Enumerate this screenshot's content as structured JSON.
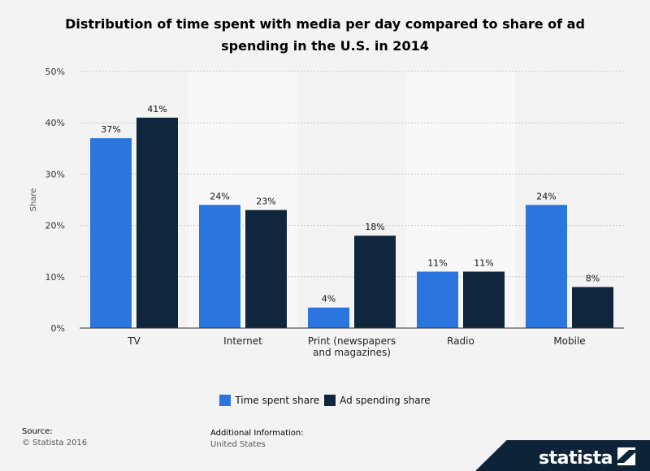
{
  "chart_data": {
    "type": "bar",
    "title": "Distribution of time spent with media per day compared to share of ad spending in the U.S. in 2014",
    "ylabel": "Share",
    "ylim": [
      0,
      50
    ],
    "yticks": [
      "0%",
      "10%",
      "20%",
      "30%",
      "40%",
      "50%"
    ],
    "ytick_values": [
      0,
      10,
      20,
      30,
      40,
      50
    ],
    "categories": [
      "TV",
      "Internet",
      "Print (newspapers|and magazines)",
      "Radio",
      "Mobile"
    ],
    "series": [
      {
        "name": "Time spent share",
        "values": [
          37,
          24,
          4,
          11,
          24
        ],
        "labels": [
          "37%",
          "24%",
          "4%",
          "11%",
          "24%"
        ],
        "color": "#2a75de"
      },
      {
        "name": "Ad spending share",
        "values": [
          41,
          23,
          18,
          11,
          8
        ],
        "labels": [
          "41%",
          "23%",
          "18%",
          "11%",
          "8%"
        ],
        "color": "#10263d"
      }
    ],
    "grid": true,
    "legend": "bottom"
  },
  "footer": {
    "source_label": "Source:",
    "source_value": "© Statista 2016",
    "info_label": "Additional Information:",
    "info_value": "United States"
  },
  "brand": {
    "name": "statista"
  }
}
